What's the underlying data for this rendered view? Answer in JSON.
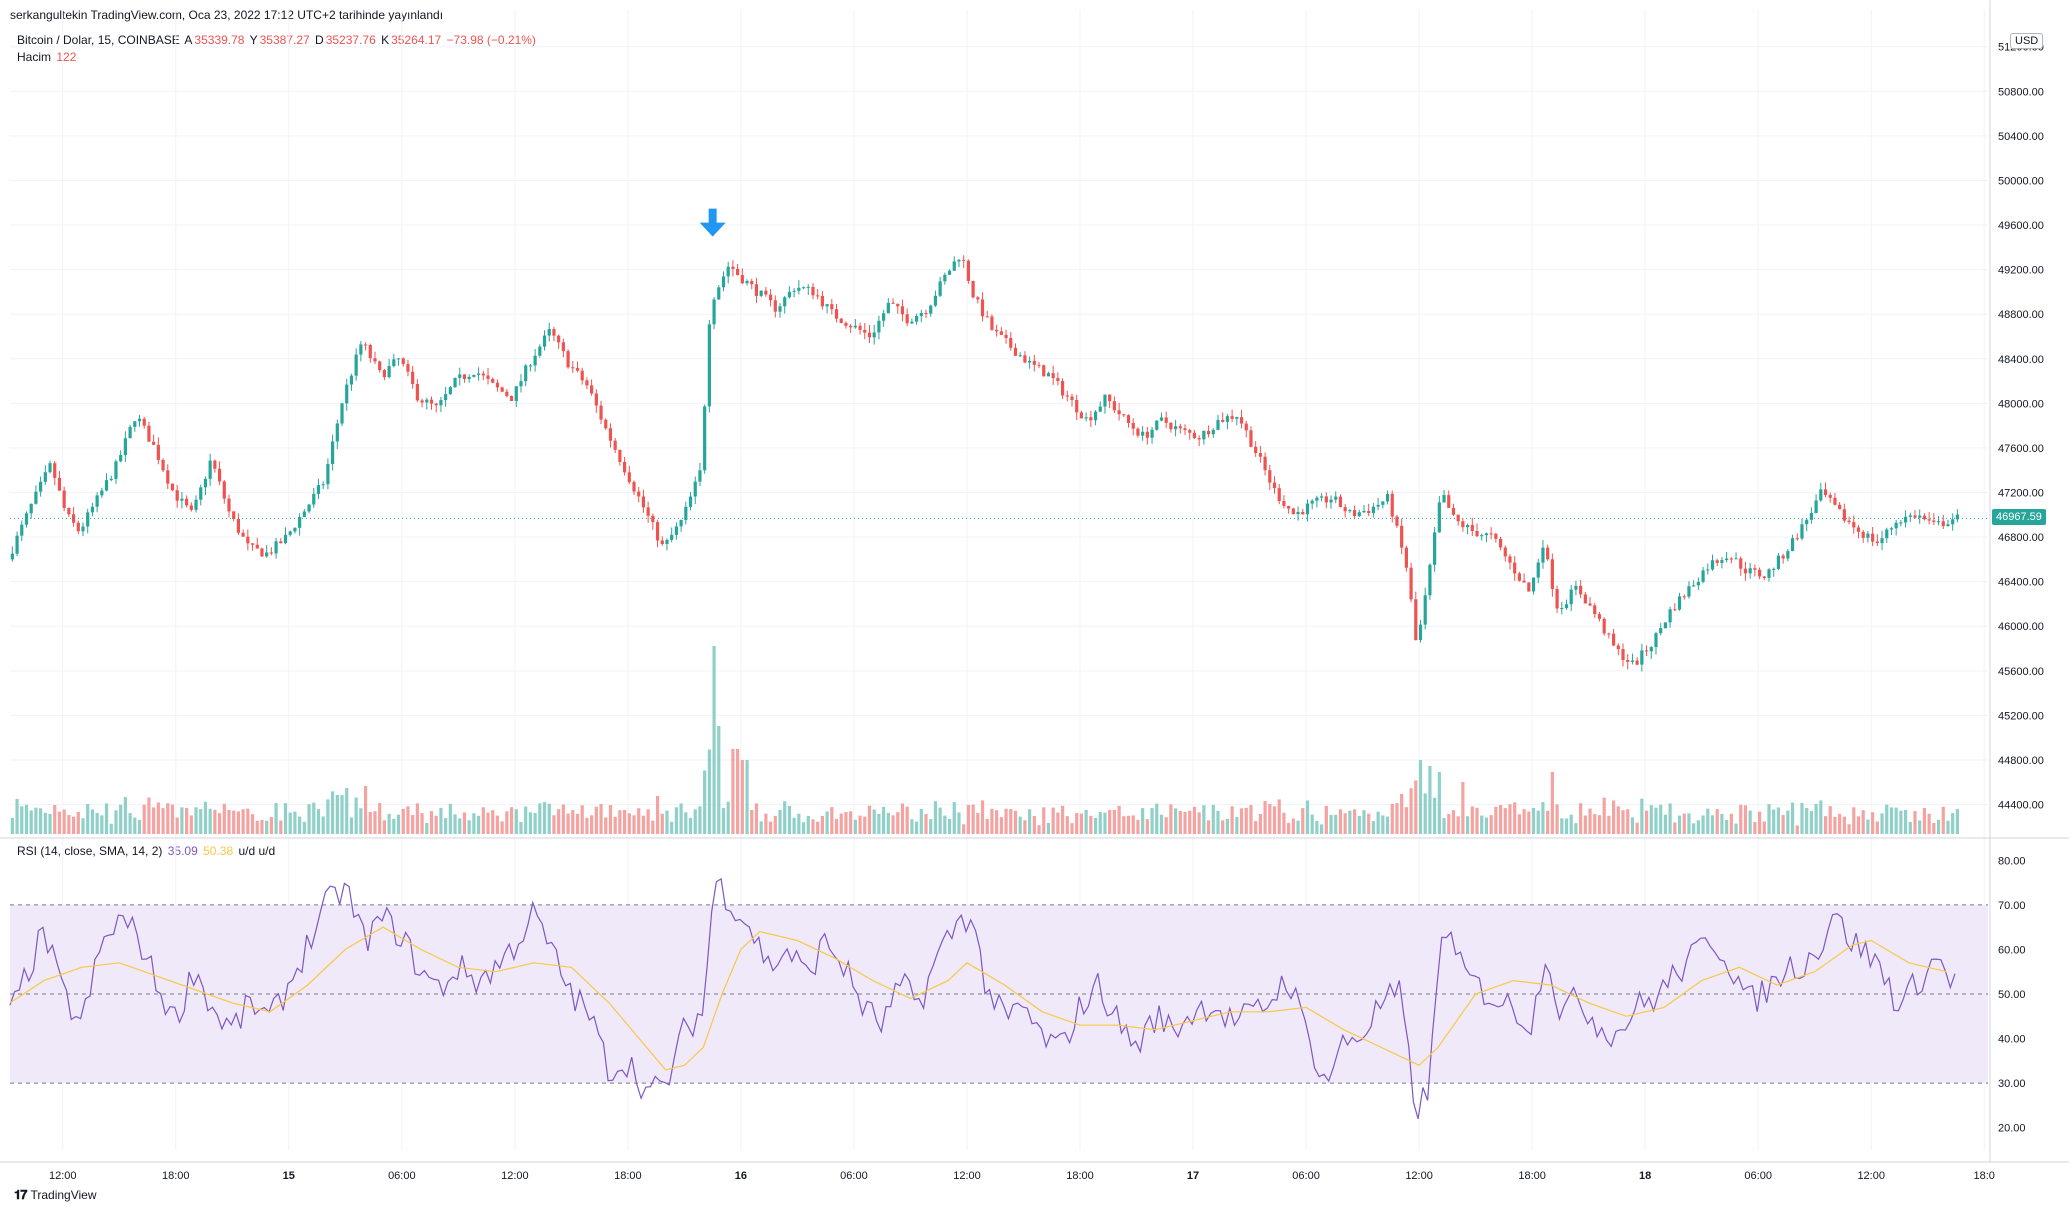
{
  "header": {
    "published": "serkangultekin TradingView.com, Oca 23, 2022 17:12 UTC+2 tarihinde yayınlandı"
  },
  "legend": {
    "symbol": "Bitcoin / Dolar, 15, COINBASE",
    "open_label": "A",
    "open": "35339.78",
    "high_label": "Y",
    "high": "35387.27",
    "low_label": "D",
    "low": "35237.76",
    "close_label": "K",
    "close": "35264.17",
    "change": "−73.98 (−0.21%)",
    "volume_label": "Hacim",
    "volume": "122"
  },
  "rsi_legend": {
    "label": "RSI (14, close, SMA, 14, 2)",
    "rsi": "35.09",
    "sma": "50.38",
    "tail": "u/d  u/d"
  },
  "currency": "USD",
  "last_price": "46967.59",
  "footer": {
    "brand": "TradingView"
  },
  "colors": {
    "up": "#26a69a",
    "down": "#ef5350",
    "vol_up": "#8fd1c8",
    "vol_down": "#f4a3a1",
    "rsi_line": "#7e57c2",
    "rsi_sma": "#f9c846",
    "rsi_band": "#efe9f9",
    "arrow": "#2196f3"
  },
  "chart_data": [
    {
      "type": "candlestick",
      "title": "Bitcoin / Dolar, 15, COINBASE",
      "ylim": [
        44100,
        51350
      ],
      "y_ticks": [
        "44400.00",
        "44800.00",
        "45200.00",
        "45600.00",
        "46000.00",
        "46400.00",
        "46800.00",
        "47200.00",
        "47600.00",
        "48000.00",
        "48400.00",
        "48800.00",
        "49200.00",
        "49600.00",
        "50000.00",
        "50400.00",
        "50800.00",
        "51200.00"
      ],
      "x_ticks": [
        "12:00",
        "18:00",
        "15",
        "06:00",
        "12:00",
        "18:00",
        "16",
        "06:00",
        "12:00",
        "18:00",
        "17",
        "06:00",
        "12:00",
        "18:00",
        "18",
        "06:00",
        "12:00",
        "18:0"
      ],
      "x_tick_hours": [
        12,
        18,
        24,
        30,
        36,
        42,
        48,
        54,
        60,
        66,
        72,
        78,
        84,
        90,
        96,
        102,
        108,
        114
      ],
      "x_range_hours": [
        9.2,
        114.2
      ],
      "price_path": [
        [
          9.2,
          46600
        ],
        [
          10.5,
          47100
        ],
        [
          11.5,
          47450
        ],
        [
          12.3,
          47000
        ],
        [
          13,
          46850
        ],
        [
          14,
          47150
        ],
        [
          15,
          47450
        ],
        [
          16,
          47900
        ],
        [
          17,
          47600
        ],
        [
          18,
          47200
        ],
        [
          19,
          47000
        ],
        [
          20,
          47500
        ],
        [
          21,
          47000
        ],
        [
          22,
          46700
        ],
        [
          23,
          46650
        ],
        [
          24,
          46800
        ],
        [
          25,
          47050
        ],
        [
          26,
          47300
        ],
        [
          27,
          48050
        ],
        [
          28,
          48550
        ],
        [
          29,
          48250
        ],
        [
          30,
          48400
        ],
        [
          31,
          48050
        ],
        [
          32,
          47950
        ],
        [
          33,
          48200
        ],
        [
          34,
          48300
        ],
        [
          35,
          48150
        ],
        [
          36,
          48050
        ],
        [
          37,
          48400
        ],
        [
          38,
          48650
        ],
        [
          39,
          48350
        ],
        [
          40,
          48150
        ],
        [
          41,
          47750
        ],
        [
          42,
          47400
        ],
        [
          43,
          47050
        ],
        [
          44,
          46700
        ],
        [
          45,
          46950
        ],
        [
          46,
          47400
        ],
        [
          46.5,
          48900
        ],
        [
          47.5,
          49250
        ],
        [
          48,
          49150
        ],
        [
          49,
          49000
        ],
        [
          50,
          48850
        ],
        [
          51,
          49050
        ],
        [
          52,
          49000
        ],
        [
          53,
          48800
        ],
        [
          54,
          48700
        ],
        [
          55,
          48600
        ],
        [
          56,
          48900
        ],
        [
          57,
          48750
        ],
        [
          58,
          48850
        ],
        [
          59,
          49150
        ],
        [
          59.8,
          49350
        ],
        [
          60.5,
          48950
        ],
        [
          61.5,
          48650
        ],
        [
          62.5,
          48500
        ],
        [
          63.5,
          48350
        ],
        [
          64.5,
          48250
        ],
        [
          65.5,
          48050
        ],
        [
          66.5,
          47850
        ],
        [
          67.5,
          48050
        ],
        [
          68.5,
          47850
        ],
        [
          69.5,
          47700
        ],
        [
          70.5,
          47850
        ],
        [
          71.5,
          47750
        ],
        [
          72.5,
          47700
        ],
        [
          73.5,
          47850
        ],
        [
          74.5,
          47900
        ],
        [
          75.5,
          47550
        ],
        [
          76.5,
          47200
        ],
        [
          77.5,
          47000
        ],
        [
          78.5,
          47100
        ],
        [
          79.5,
          47150
        ],
        [
          80.5,
          47000
        ],
        [
          81.5,
          47050
        ],
        [
          82.5,
          47150
        ],
        [
          83.5,
          46500
        ],
        [
          84,
          45800
        ],
        [
          84.5,
          46300
        ],
        [
          85.3,
          47200
        ],
        [
          86,
          46950
        ],
        [
          87,
          46850
        ],
        [
          88,
          46800
        ],
        [
          89,
          46550
        ],
        [
          90,
          46300
        ],
        [
          90.7,
          46750
        ],
        [
          91.5,
          46150
        ],
        [
          92.5,
          46350
        ],
        [
          93.5,
          46100
        ],
        [
          94.5,
          45800
        ],
        [
          95.5,
          45650
        ],
        [
          96.5,
          45850
        ],
        [
          97.5,
          46150
        ],
        [
          98.5,
          46350
        ],
        [
          99.5,
          46550
        ],
        [
          100.5,
          46650
        ],
        [
          101.5,
          46500
        ],
        [
          102.5,
          46450
        ],
        [
          103.5,
          46650
        ],
        [
          104.5,
          46900
        ],
        [
          105.5,
          47200
        ],
        [
          106.5,
          47000
        ],
        [
          107.5,
          46850
        ],
        [
          108.5,
          46750
        ],
        [
          109.5,
          46950
        ],
        [
          110.5,
          47000
        ],
        [
          111.5,
          46900
        ],
        [
          112.5,
          46967
        ]
      ],
      "volume_spikes": [
        [
          46.4,
          188
        ],
        [
          46.8,
          108
        ],
        [
          47.6,
          85
        ],
        [
          48.1,
          74
        ],
        [
          84.0,
          74
        ],
        [
          84.4,
          68
        ],
        [
          85.0,
          62
        ],
        [
          86.2,
          52
        ],
        [
          91.0,
          62
        ],
        [
          27.0,
          46
        ],
        [
          28.0,
          48
        ]
      ]
    },
    {
      "type": "line",
      "title": "RSI (14, close, SMA, 14, 2)",
      "ylim": [
        15,
        85
      ],
      "y_ticks": [
        "20.00",
        "30.00",
        "40.00",
        "50.00",
        "60.00",
        "70.00",
        "80.00"
      ],
      "bands": [
        30,
        50,
        70
      ],
      "series": [
        {
          "name": "RSI",
          "values_path": [
            [
              9.2,
              45
            ],
            [
              11,
              64
            ],
            [
              12,
              50
            ],
            [
              13,
              43
            ],
            [
              14,
              60
            ],
            [
              15,
              67
            ],
            [
              16,
              63
            ],
            [
              17,
              52
            ],
            [
              18,
              44
            ],
            [
              19,
              56
            ],
            [
              20,
              46
            ],
            [
              21,
              42
            ],
            [
              22,
              48
            ],
            [
              23,
              44
            ],
            [
              24,
              52
            ],
            [
              25,
              61
            ],
            [
              26,
              70
            ],
            [
              27,
              74
            ],
            [
              28,
              62
            ],
            [
              29,
              67
            ],
            [
              30,
              63
            ],
            [
              31,
              55
            ],
            [
              32,
              51
            ],
            [
              33,
              56
            ],
            [
              34,
              53
            ],
            [
              35,
              56
            ],
            [
              36,
              61
            ],
            [
              37,
              68
            ],
            [
              38,
              59
            ],
            [
              39,
              50
            ],
            [
              40,
              45
            ],
            [
              41,
              33
            ],
            [
              42,
              35
            ],
            [
              43,
              28
            ],
            [
              44,
              29
            ],
            [
              45,
              42
            ],
            [
              46,
              46
            ],
            [
              46.6,
              76
            ],
            [
              47.6,
              70
            ],
            [
              48.5,
              65
            ],
            [
              49.5,
              56
            ],
            [
              50.5,
              60
            ],
            [
              51.5,
              54
            ],
            [
              52.5,
              62
            ],
            [
              53.5,
              56
            ],
            [
              54.5,
              47
            ],
            [
              55.5,
              43
            ],
            [
              56.5,
              52
            ],
            [
              57.5,
              48
            ],
            [
              58.5,
              59
            ],
            [
              59.5,
              66
            ],
            [
              60.2,
              68
            ],
            [
              61,
              52
            ],
            [
              62,
              44
            ],
            [
              63,
              47
            ],
            [
              64,
              40
            ],
            [
              65,
              38
            ],
            [
              66,
              47
            ],
            [
              67,
              52
            ],
            [
              68,
              44
            ],
            [
              69,
              38
            ],
            [
              70,
              45
            ],
            [
              71,
              42
            ],
            [
              72,
              46
            ],
            [
              73,
              48
            ],
            [
              74,
              44
            ],
            [
              75,
              45
            ],
            [
              76,
              48
            ],
            [
              77,
              54
            ],
            [
              78,
              42
            ],
            [
              79,
              30
            ],
            [
              80,
              39
            ],
            [
              81,
              41
            ],
            [
              82,
              48
            ],
            [
              83,
              50
            ],
            [
              83.8,
              24
            ],
            [
              84.5,
              28
            ],
            [
              85.3,
              68
            ],
            [
              86,
              57
            ],
            [
              87,
              52
            ],
            [
              88,
              49
            ],
            [
              89,
              47
            ],
            [
              90,
              43
            ],
            [
              90.7,
              60
            ],
            [
              91.5,
              46
            ],
            [
              92.5,
              49
            ],
            [
              93.5,
              43
            ],
            [
              94.5,
              41
            ],
            [
              95.5,
              47
            ],
            [
              96.5,
              49
            ],
            [
              97.5,
              54
            ],
            [
              98.5,
              58
            ],
            [
              99.5,
              63
            ],
            [
              100.5,
              57
            ],
            [
              101.5,
              48
            ],
            [
              102.5,
              51
            ],
            [
              103.5,
              56
            ],
            [
              104.5,
              57
            ],
            [
              105.5,
              62
            ],
            [
              106,
              70
            ],
            [
              106.5,
              64
            ],
            [
              107.5,
              60
            ],
            [
              108.5,
              56
            ],
            [
              109.5,
              47
            ],
            [
              110.5,
              53
            ],
            [
              111.5,
              58
            ],
            [
              112.5,
              52
            ]
          ]
        },
        {
          "name": "SMA",
          "values_path": [
            [
              9.2,
              48
            ],
            [
              11,
              53
            ],
            [
              13,
              56
            ],
            [
              15,
              57
            ],
            [
              17,
              54
            ],
            [
              19,
              51
            ],
            [
              21,
              48
            ],
            [
              23,
              46
            ],
            [
              25,
              52
            ],
            [
              27,
              60
            ],
            [
              29,
              65
            ],
            [
              31,
              60
            ],
            [
              33,
              56
            ],
            [
              35,
              55
            ],
            [
              37,
              57
            ],
            [
              39,
              56
            ],
            [
              41,
              48
            ],
            [
              43,
              38
            ],
            [
              44,
              33
            ],
            [
              45,
              34
            ],
            [
              46,
              38
            ],
            [
              47,
              50
            ],
            [
              48,
              60
            ],
            [
              49,
              64
            ],
            [
              51,
              62
            ],
            [
              53,
              58
            ],
            [
              55,
              53
            ],
            [
              57,
              49
            ],
            [
              59,
              53
            ],
            [
              60,
              57
            ],
            [
              62,
              52
            ],
            [
              64,
              46
            ],
            [
              66,
              43
            ],
            [
              68,
              43
            ],
            [
              70,
              42
            ],
            [
              72,
              44
            ],
            [
              74,
              46
            ],
            [
              76,
              46
            ],
            [
              78,
              47
            ],
            [
              80,
              42
            ],
            [
              82,
              38
            ],
            [
              83,
              36
            ],
            [
              84,
              34
            ],
            [
              85,
              38
            ],
            [
              87,
              50
            ],
            [
              89,
              53
            ],
            [
              91,
              52
            ],
            [
              93,
              48
            ],
            [
              95,
              45
            ],
            [
              97,
              47
            ],
            [
              99,
              53
            ],
            [
              101,
              56
            ],
            [
              103,
              52
            ],
            [
              105,
              55
            ],
            [
              107,
              61
            ],
            [
              108,
              62
            ],
            [
              110,
              57
            ],
            [
              112,
              55
            ]
          ]
        }
      ]
    }
  ]
}
